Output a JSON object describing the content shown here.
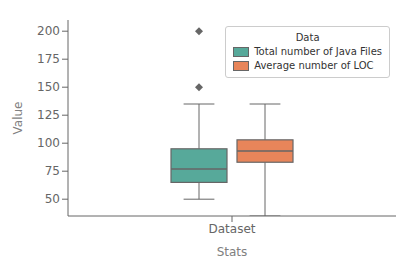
{
  "chart_data": {
    "type": "box",
    "xlabel": "Stats",
    "ylabel": "Value",
    "categories": [
      "Dataset"
    ],
    "ylim": [
      35,
      210
    ],
    "yticks": [
      50,
      75,
      100,
      125,
      150,
      175,
      200
    ],
    "grid": false,
    "legend": "upper right",
    "legend_title": "Data",
    "marker": "diamond",
    "series": [
      {
        "name": "Total number of Java Files",
        "color": "#57a99a",
        "q1": 65,
        "median": 77,
        "q3": 95,
        "whisker_low": 50,
        "whisker_high": 135,
        "outliers": [
          150,
          200
        ]
      },
      {
        "name": "Average number of LOC",
        "color": "#e8855a",
        "q1": 83,
        "median": 93,
        "q3": 103,
        "whisker_low": 35,
        "whisker_high": 135,
        "outliers": []
      }
    ]
  }
}
